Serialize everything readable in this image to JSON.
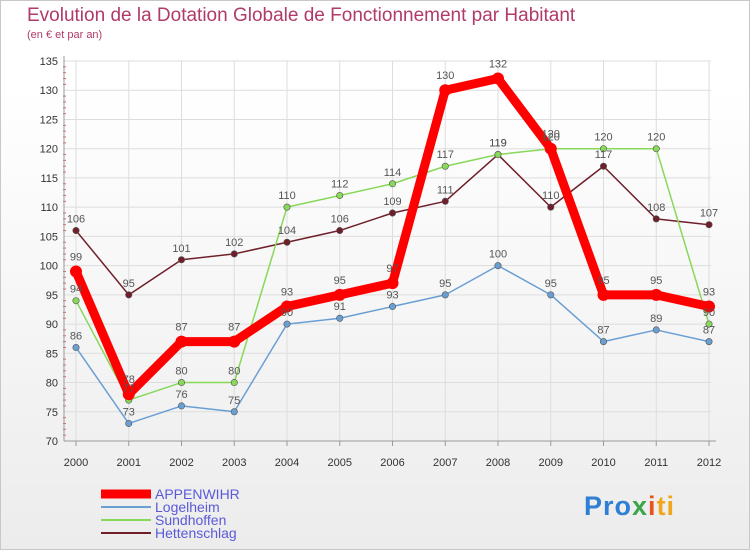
{
  "chart_data": {
    "type": "line",
    "title": "Evolution de la Dotation Globale de Fonctionnement par Habitant",
    "subtitle": "(en € et par an)",
    "x": [
      "2000",
      "2001",
      "2002",
      "2003",
      "2004",
      "2005",
      "2006",
      "2007",
      "2008",
      "2009",
      "2010",
      "2011",
      "2012"
    ],
    "ylim": [
      70,
      135
    ],
    "yticks": [
      70,
      75,
      80,
      85,
      90,
      95,
      100,
      105,
      110,
      115,
      120,
      125,
      130,
      135
    ],
    "series": [
      {
        "name": "APPENWIHR",
        "color": "#ff0000",
        "values": [
          99,
          78,
          87,
          87,
          93,
          95,
          97,
          130,
          132,
          120,
          95,
          95,
          93
        ]
      },
      {
        "name": "Logelheim",
        "color": "#6a9fd4",
        "values": [
          86,
          73,
          76,
          75,
          90,
          91,
          93,
          95,
          100,
          95,
          87,
          89,
          87
        ]
      },
      {
        "name": "Sundhoffen",
        "color": "#88d85a",
        "values": [
          94,
          77,
          80,
          80,
          110,
          112,
          114,
          117,
          119,
          120,
          120,
          120,
          90
        ]
      },
      {
        "name": "Hettenschlag",
        "color": "#6e1f2a",
        "values": [
          106,
          95,
          101,
          102,
          104,
          106,
          109,
          111,
          119,
          110,
          117,
          108,
          107
        ]
      }
    ],
    "legend_position": "bottom-left"
  },
  "logo": {
    "p1": "Pro",
    "p2": "x",
    "p3": "i",
    "p4": "ti"
  }
}
